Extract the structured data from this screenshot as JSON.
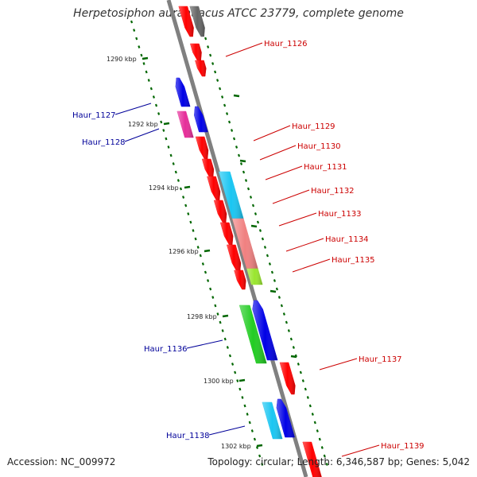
{
  "title": "Herpetosiphon aurantiacus ATCC 23779, complete genome",
  "footer": {
    "accession": "Accession: NC_009972",
    "topology": "Topology: circular; Length: 6,346,587 bp; Genes: 5,042"
  },
  "colors": {
    "forward_label": "#cc0000",
    "reverse_label": "#000099",
    "ruler_tick": "#006600",
    "backbone": "#808080",
    "gene_red": "#ff0000",
    "gene_blue": "#0000e6",
    "gene_gray": "#666666",
    "gene_magenta": "#e62e99",
    "gene_cyan": "#1ac6f2",
    "gene_pink": "#f08080",
    "gene_green": "#22cc22",
    "gene_lime": "#99e62e"
  },
  "kbp_labels": [
    "1290 kbp",
    "1292 kbp",
    "1294 kbp",
    "1296 kbp",
    "1298 kbp",
    "1300 kbp",
    "1302 kbp"
  ],
  "genes": {
    "forward": [
      "Haur_1126",
      "Haur_1129",
      "Haur_1130",
      "Haur_1131",
      "Haur_1132",
      "Haur_1133",
      "Haur_1134",
      "Haur_1135",
      "Haur_1137",
      "Haur_1139"
    ],
    "reverse": [
      "Haur_1127",
      "Haur_1128",
      "Haur_1136",
      "Haur_1138"
    ]
  }
}
